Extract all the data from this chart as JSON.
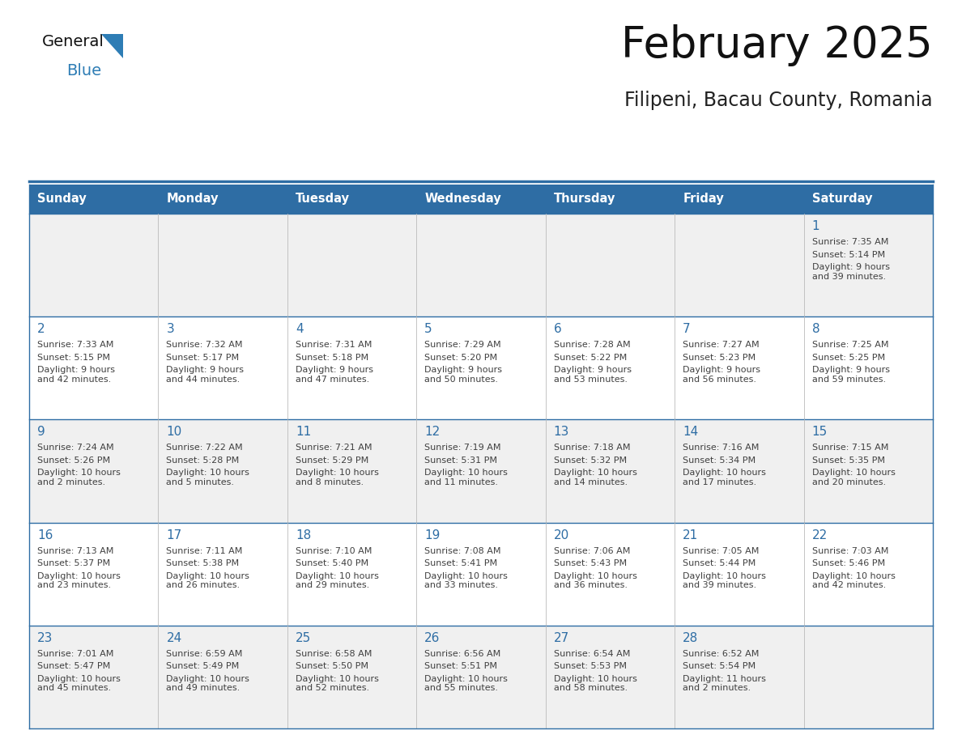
{
  "title": "February 2025",
  "subtitle": "Filipeni, Bacau County, Romania",
  "header_bg": "#2E6DA4",
  "header_text_color": "#FFFFFF",
  "day_number_color": "#2E6DA4",
  "info_text_color": "#404040",
  "border_color": "#2E6DA4",
  "days_of_week": [
    "Sunday",
    "Monday",
    "Tuesday",
    "Wednesday",
    "Thursday",
    "Friday",
    "Saturday"
  ],
  "weeks": [
    [
      {
        "day": null
      },
      {
        "day": null
      },
      {
        "day": null
      },
      {
        "day": null
      },
      {
        "day": null
      },
      {
        "day": null
      },
      {
        "day": 1,
        "sunrise": "7:35 AM",
        "sunset": "5:14 PM",
        "daylight": "9 hours\nand 39 minutes."
      }
    ],
    [
      {
        "day": 2,
        "sunrise": "7:33 AM",
        "sunset": "5:15 PM",
        "daylight": "9 hours\nand 42 minutes."
      },
      {
        "day": 3,
        "sunrise": "7:32 AM",
        "sunset": "5:17 PM",
        "daylight": "9 hours\nand 44 minutes."
      },
      {
        "day": 4,
        "sunrise": "7:31 AM",
        "sunset": "5:18 PM",
        "daylight": "9 hours\nand 47 minutes."
      },
      {
        "day": 5,
        "sunrise": "7:29 AM",
        "sunset": "5:20 PM",
        "daylight": "9 hours\nand 50 minutes."
      },
      {
        "day": 6,
        "sunrise": "7:28 AM",
        "sunset": "5:22 PM",
        "daylight": "9 hours\nand 53 minutes."
      },
      {
        "day": 7,
        "sunrise": "7:27 AM",
        "sunset": "5:23 PM",
        "daylight": "9 hours\nand 56 minutes."
      },
      {
        "day": 8,
        "sunrise": "7:25 AM",
        "sunset": "5:25 PM",
        "daylight": "9 hours\nand 59 minutes."
      }
    ],
    [
      {
        "day": 9,
        "sunrise": "7:24 AM",
        "sunset": "5:26 PM",
        "daylight": "10 hours\nand 2 minutes."
      },
      {
        "day": 10,
        "sunrise": "7:22 AM",
        "sunset": "5:28 PM",
        "daylight": "10 hours\nand 5 minutes."
      },
      {
        "day": 11,
        "sunrise": "7:21 AM",
        "sunset": "5:29 PM",
        "daylight": "10 hours\nand 8 minutes."
      },
      {
        "day": 12,
        "sunrise": "7:19 AM",
        "sunset": "5:31 PM",
        "daylight": "10 hours\nand 11 minutes."
      },
      {
        "day": 13,
        "sunrise": "7:18 AM",
        "sunset": "5:32 PM",
        "daylight": "10 hours\nand 14 minutes."
      },
      {
        "day": 14,
        "sunrise": "7:16 AM",
        "sunset": "5:34 PM",
        "daylight": "10 hours\nand 17 minutes."
      },
      {
        "day": 15,
        "sunrise": "7:15 AM",
        "sunset": "5:35 PM",
        "daylight": "10 hours\nand 20 minutes."
      }
    ],
    [
      {
        "day": 16,
        "sunrise": "7:13 AM",
        "sunset": "5:37 PM",
        "daylight": "10 hours\nand 23 minutes."
      },
      {
        "day": 17,
        "sunrise": "7:11 AM",
        "sunset": "5:38 PM",
        "daylight": "10 hours\nand 26 minutes."
      },
      {
        "day": 18,
        "sunrise": "7:10 AM",
        "sunset": "5:40 PM",
        "daylight": "10 hours\nand 29 minutes."
      },
      {
        "day": 19,
        "sunrise": "7:08 AM",
        "sunset": "5:41 PM",
        "daylight": "10 hours\nand 33 minutes."
      },
      {
        "day": 20,
        "sunrise": "7:06 AM",
        "sunset": "5:43 PM",
        "daylight": "10 hours\nand 36 minutes."
      },
      {
        "day": 21,
        "sunrise": "7:05 AM",
        "sunset": "5:44 PM",
        "daylight": "10 hours\nand 39 minutes."
      },
      {
        "day": 22,
        "sunrise": "7:03 AM",
        "sunset": "5:46 PM",
        "daylight": "10 hours\nand 42 minutes."
      }
    ],
    [
      {
        "day": 23,
        "sunrise": "7:01 AM",
        "sunset": "5:47 PM",
        "daylight": "10 hours\nand 45 minutes."
      },
      {
        "day": 24,
        "sunrise": "6:59 AM",
        "sunset": "5:49 PM",
        "daylight": "10 hours\nand 49 minutes."
      },
      {
        "day": 25,
        "sunrise": "6:58 AM",
        "sunset": "5:50 PM",
        "daylight": "10 hours\nand 52 minutes."
      },
      {
        "day": 26,
        "sunrise": "6:56 AM",
        "sunset": "5:51 PM",
        "daylight": "10 hours\nand 55 minutes."
      },
      {
        "day": 27,
        "sunrise": "6:54 AM",
        "sunset": "5:53 PM",
        "daylight": "10 hours\nand 58 minutes."
      },
      {
        "day": 28,
        "sunrise": "6:52 AM",
        "sunset": "5:54 PM",
        "daylight": "11 hours\nand 2 minutes."
      },
      {
        "day": null
      }
    ]
  ]
}
